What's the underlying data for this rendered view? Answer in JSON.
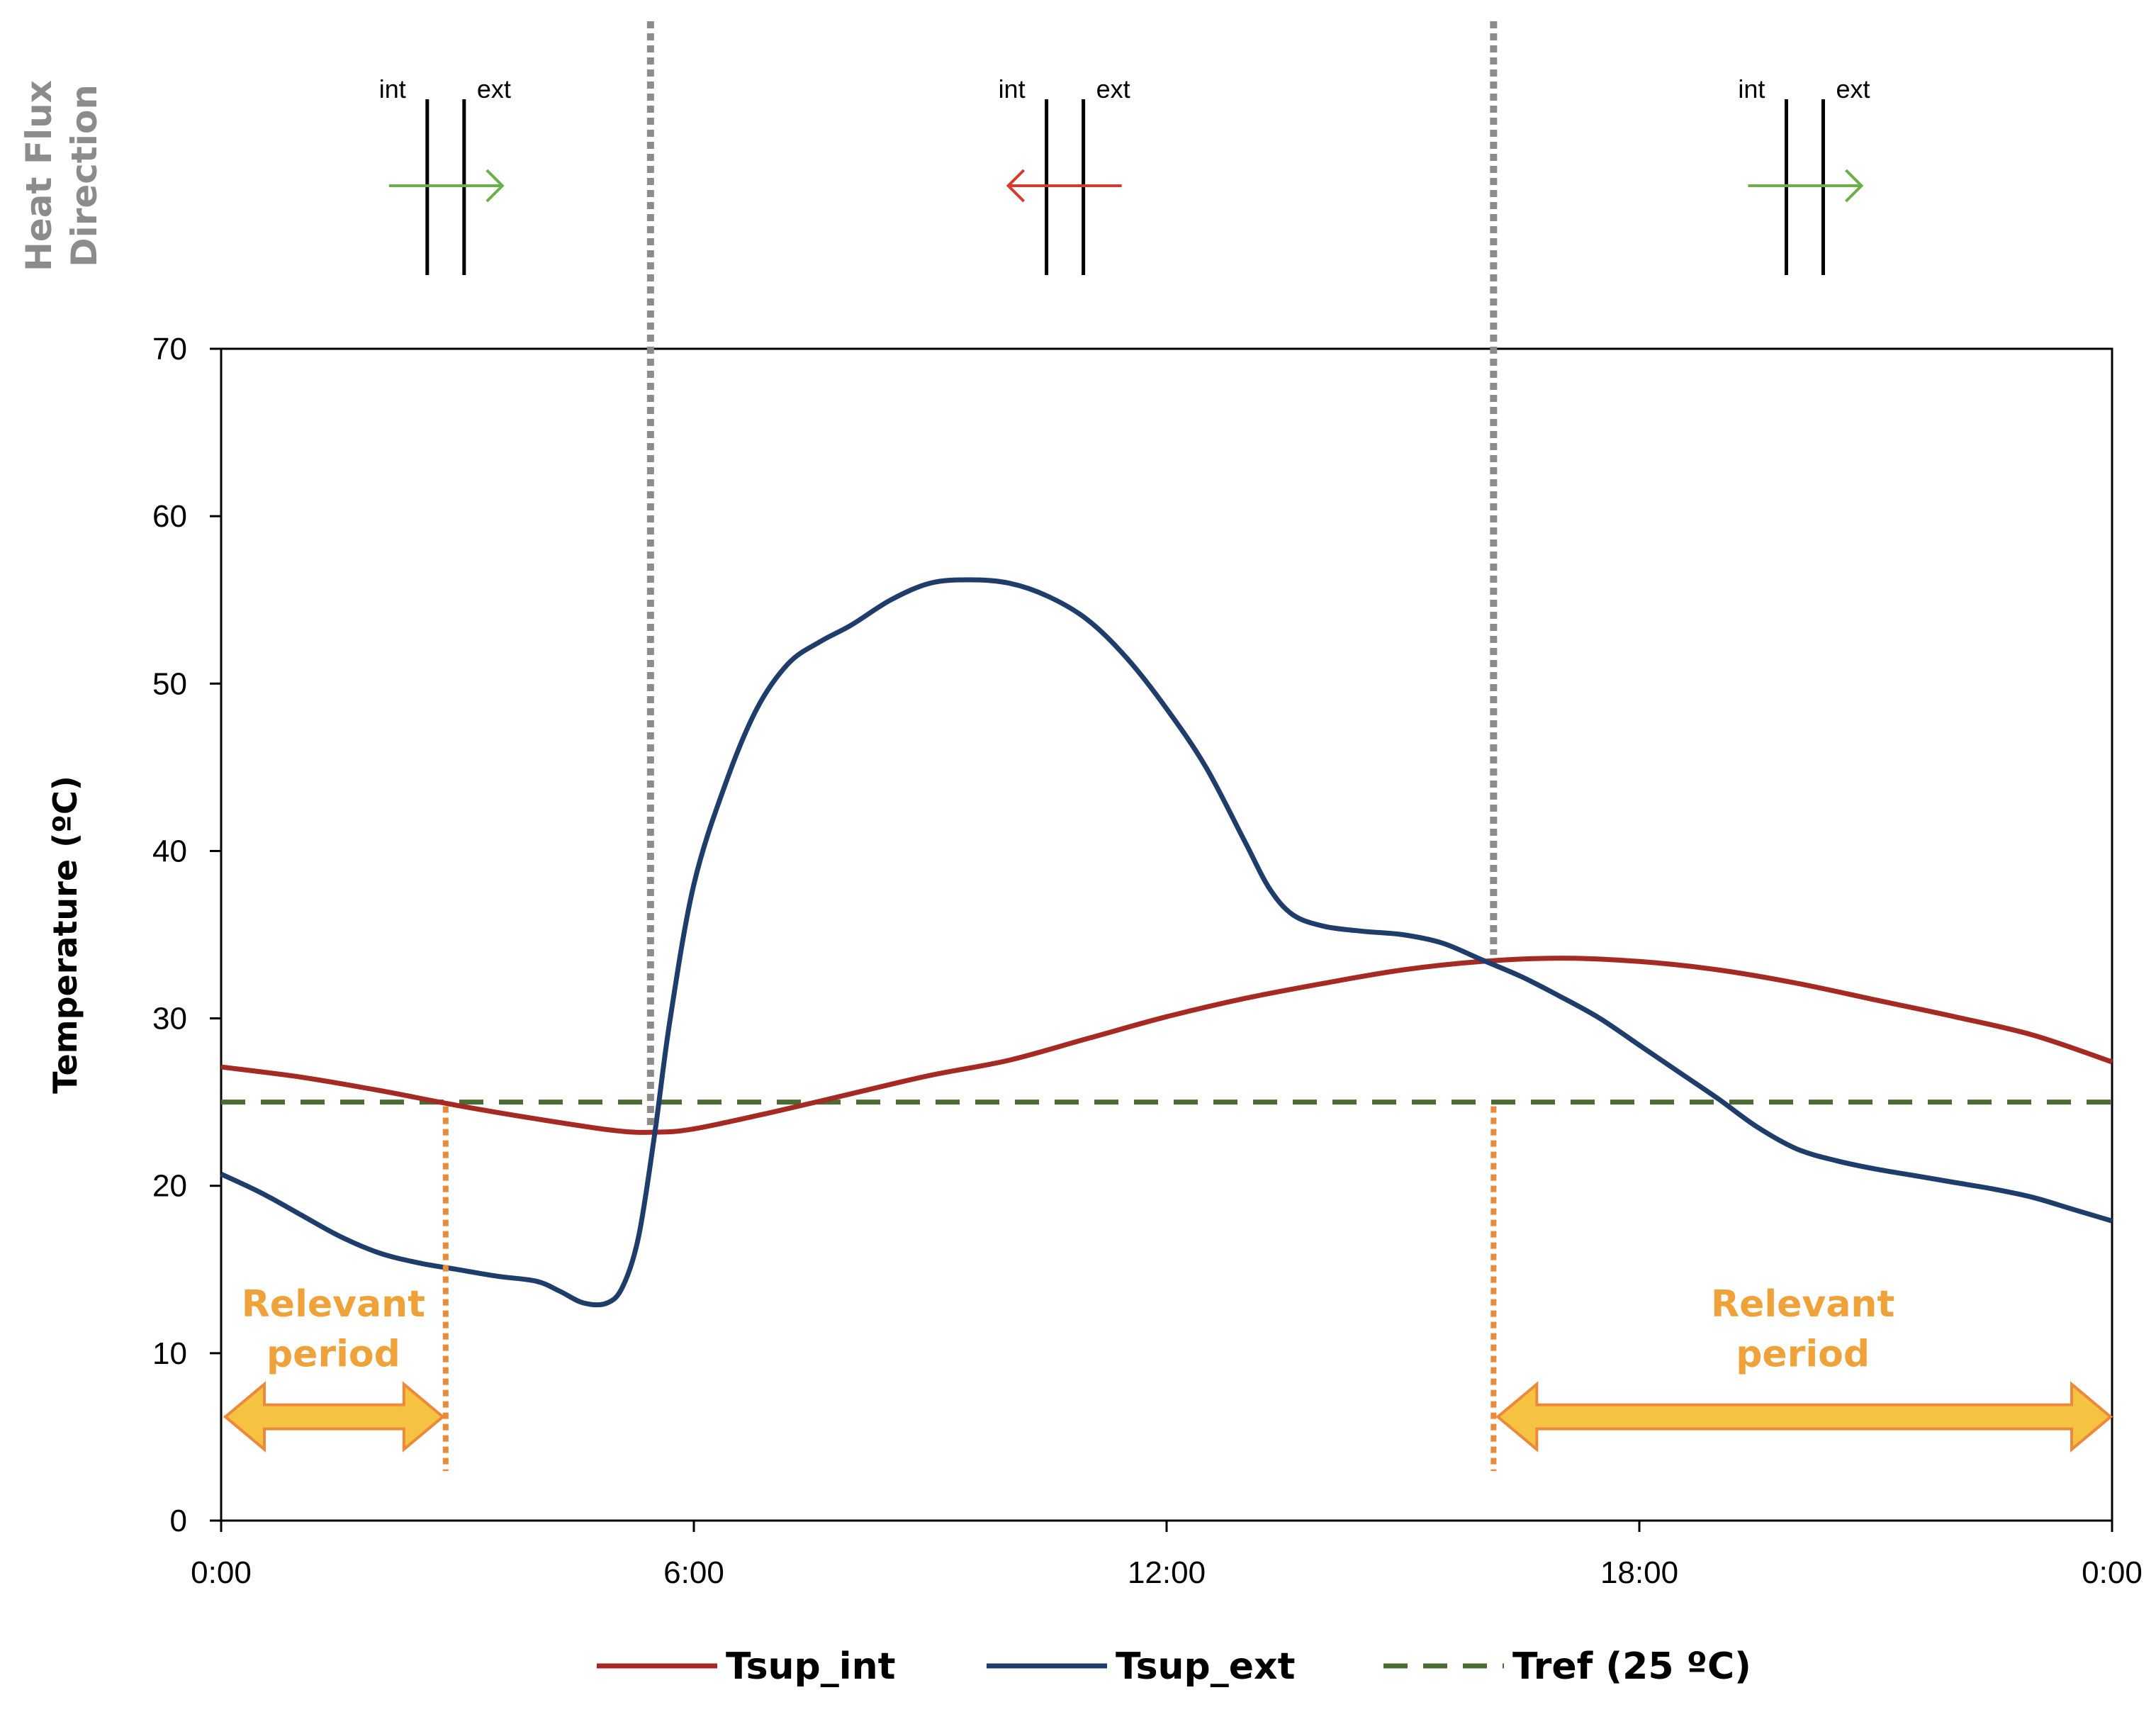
{
  "chart_data": {
    "type": "line",
    "title": "",
    "xlabel": "",
    "ylabel": "Temperature (ºC)",
    "ylim": [
      0,
      70
    ],
    "yticks": [
      "0",
      "10",
      "20",
      "30",
      "40",
      "50",
      "60",
      "70"
    ],
    "xlim": [
      0,
      24
    ],
    "xticks": [
      {
        "value": 0,
        "label": "0:00"
      },
      {
        "value": 6,
        "label": "6:00"
      },
      {
        "value": 12,
        "label": "12:00"
      },
      {
        "value": 18,
        "label": "18:00"
      },
      {
        "value": 24,
        "label": "0:00"
      }
    ],
    "series": [
      {
        "name": "Tsup_int",
        "color": "#a52a23",
        "dash": "solid",
        "points": [
          [
            0,
            27.1
          ],
          [
            1,
            26.5
          ],
          [
            2,
            25.7
          ],
          [
            3,
            24.8
          ],
          [
            4,
            24.0
          ],
          [
            5,
            23.3
          ],
          [
            5.5,
            23.2
          ],
          [
            6,
            23.4
          ],
          [
            7,
            24.4
          ],
          [
            8,
            25.5
          ],
          [
            9,
            26.6
          ],
          [
            10,
            27.5
          ],
          [
            11,
            28.8
          ],
          [
            12,
            30.1
          ],
          [
            13,
            31.2
          ],
          [
            14,
            32.1
          ],
          [
            15,
            32.9
          ],
          [
            16,
            33.4
          ],
          [
            17,
            33.6
          ],
          [
            18,
            33.4
          ],
          [
            19,
            32.9
          ],
          [
            20,
            32.1
          ],
          [
            21,
            31.1
          ],
          [
            22,
            30.1
          ],
          [
            23,
            29.0
          ],
          [
            24,
            27.4
          ]
        ]
      },
      {
        "name": "Tsup_ext",
        "color": "#1f3d6b",
        "dash": "solid",
        "points": [
          [
            0,
            20.7
          ],
          [
            0.5,
            19.6
          ],
          [
            1,
            18.3
          ],
          [
            1.5,
            17.0
          ],
          [
            2,
            16.0
          ],
          [
            2.5,
            15.4
          ],
          [
            3,
            15.0
          ],
          [
            3.5,
            14.6
          ],
          [
            4,
            14.3
          ],
          [
            4.3,
            13.7
          ],
          [
            4.6,
            13.0
          ],
          [
            4.9,
            13.0
          ],
          [
            5.1,
            14.0
          ],
          [
            5.3,
            17.0
          ],
          [
            5.5,
            23.0
          ],
          [
            5.7,
            30.0
          ],
          [
            6,
            38.0
          ],
          [
            6.4,
            44.0
          ],
          [
            6.8,
            48.5
          ],
          [
            7.2,
            51.2
          ],
          [
            7.6,
            52.5
          ],
          [
            8,
            53.5
          ],
          [
            8.5,
            55.0
          ],
          [
            9,
            56.0
          ],
          [
            9.5,
            56.2
          ],
          [
            10,
            56.0
          ],
          [
            10.5,
            55.2
          ],
          [
            11,
            53.8
          ],
          [
            11.5,
            51.5
          ],
          [
            12,
            48.5
          ],
          [
            12.5,
            45.0
          ],
          [
            13,
            40.5
          ],
          [
            13.3,
            37.8
          ],
          [
            13.6,
            36.2
          ],
          [
            14,
            35.5
          ],
          [
            14.5,
            35.2
          ],
          [
            15,
            35.0
          ],
          [
            15.5,
            34.5
          ],
          [
            16,
            33.5
          ],
          [
            16.5,
            32.5
          ],
          [
            17,
            31.3
          ],
          [
            17.5,
            30.0
          ],
          [
            18,
            28.4
          ],
          [
            18.5,
            26.8
          ],
          [
            19,
            25.2
          ],
          [
            19.5,
            23.5
          ],
          [
            20,
            22.2
          ],
          [
            20.5,
            21.5
          ],
          [
            21,
            21.0
          ],
          [
            21.5,
            20.6
          ],
          [
            22,
            20.2
          ],
          [
            22.5,
            19.8
          ],
          [
            23,
            19.3
          ],
          [
            23.5,
            18.6
          ],
          [
            24,
            17.9
          ]
        ]
      },
      {
        "name": "Tref (25 ºC)",
        "color": "#4a6b32",
        "dash": "dashed",
        "points": [
          [
            0,
            25
          ],
          [
            24,
            25
          ]
        ]
      }
    ],
    "vertical_markers": [
      {
        "x": 5.45,
        "color": "#8c8c8c"
      },
      {
        "x": 16.15,
        "color": "#8c8c8c"
      }
    ],
    "relevant_markers": [
      {
        "x": 2.85,
        "color": "#ea8a3a"
      },
      {
        "x": 16.15,
        "color": "#ea8a3a"
      }
    ],
    "relevant_periods": [
      {
        "from": 0,
        "to": 2.85,
        "label_line1": "Relevant",
        "label_line2": "period"
      },
      {
        "from": 16.15,
        "to": 24,
        "label_line1": "Relevant",
        "label_line2": "period"
      }
    ],
    "heat_flux": {
      "title_line1": "Heat Flux",
      "title_line2": "Direction",
      "int_label": "int",
      "ext_label": "ext",
      "segments": [
        {
          "at": 2.85,
          "direction": "int-to-ext",
          "color": "#6aaf4a"
        },
        {
          "at": 10.8,
          "direction": "ext-to-int",
          "color": "#d63a2f"
        },
        {
          "at": 20.1,
          "direction": "int-to-ext",
          "color": "#6aaf4a"
        }
      ]
    },
    "legend": {
      "position": "bottom",
      "entries": [
        {
          "label": "Tsup_int",
          "color": "#a52a23",
          "dash": "solid"
        },
        {
          "label": "Tsup_ext",
          "color": "#1f3d6b",
          "dash": "solid"
        },
        {
          "label": "Tref (25 ºC)",
          "color": "#4a6b32",
          "dash": "dashed"
        }
      ]
    },
    "grid": false
  }
}
